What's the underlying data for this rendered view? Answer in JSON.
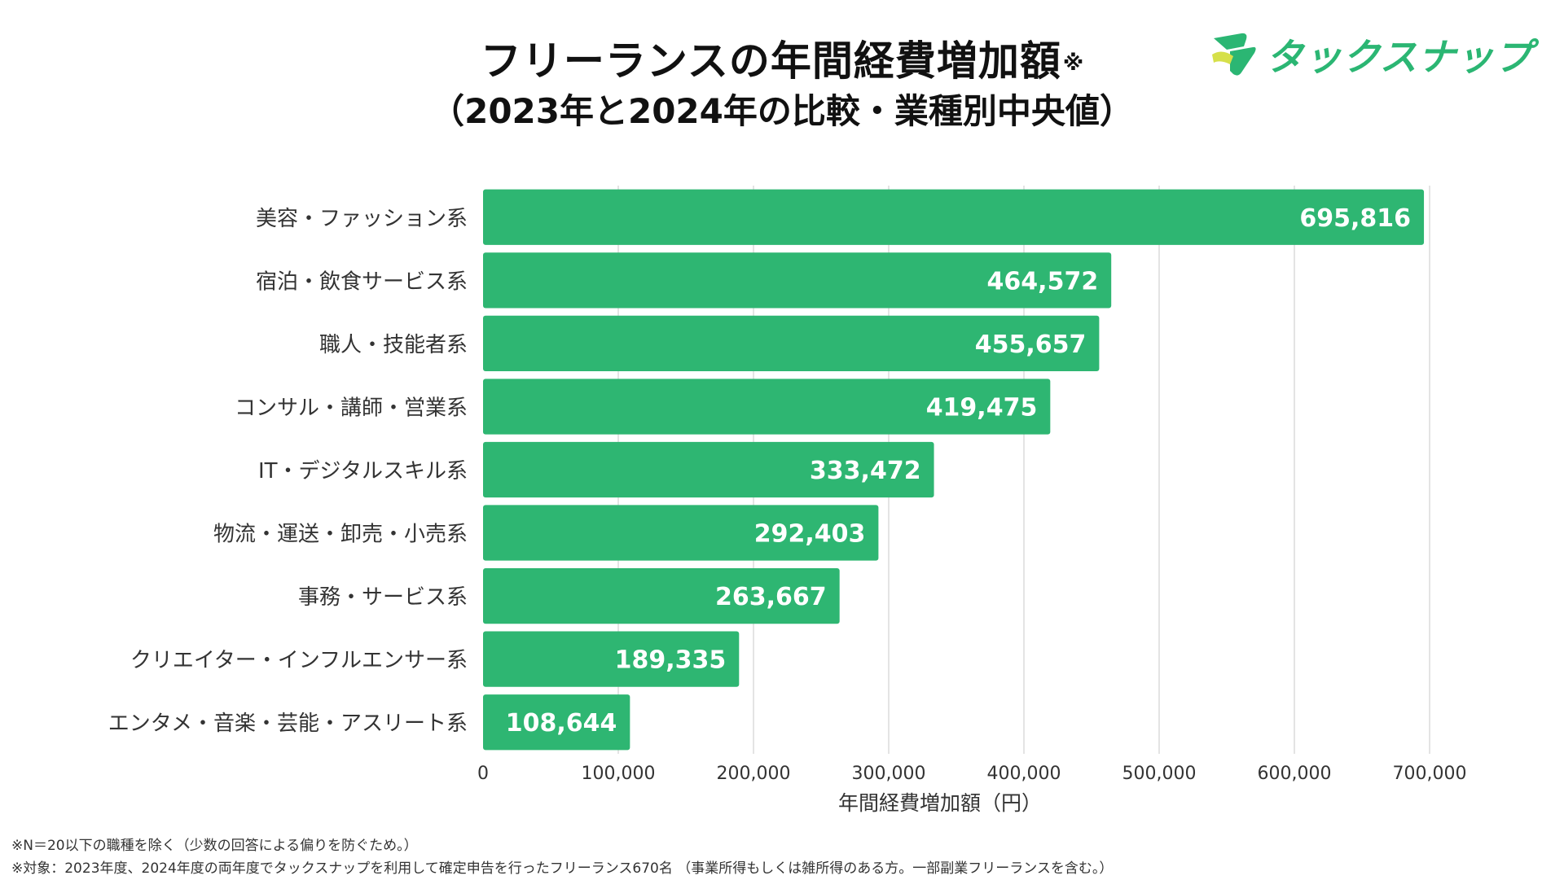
{
  "header": {
    "title": "フリーランスの年間経費増加額",
    "title_note_mark": "※",
    "subtitle": "（2023年と2024年の比較・業種別中央値）"
  },
  "logo": {
    "text": "タックスナップ",
    "icon": "taxnap-logo-icon"
  },
  "colors": {
    "bar": "#2eb672",
    "grid": "#dcdcdc",
    "logo_green": "#2bb673",
    "logo_yellow": "#d6e04a"
  },
  "chart_data": {
    "type": "bar",
    "orientation": "horizontal",
    "title": "フリーランスの年間経費増加額※",
    "subtitle": "（2023年と2024年の比較・業種別中央値）",
    "categories": [
      "美容・ファッション系",
      "宿泊・飲食サービス系",
      "職人・技能者系",
      "コンサル・講師・営業系",
      "IT・デジタルスキル系",
      "物流・運送・卸売・小売系",
      "事務・サービス系",
      "クリエイター・インフルエンサー系",
      "エンタメ・音楽・芸能・アスリート系"
    ],
    "values": [
      695816,
      464572,
      455657,
      419475,
      333472,
      292403,
      263667,
      189335,
      108644
    ],
    "value_labels": [
      "695,816",
      "464,572",
      "455,657",
      "419,475",
      "333,472",
      "292,403",
      "263,667",
      "189,335",
      "108,644"
    ],
    "xlim": [
      0,
      700000
    ],
    "xticks": [
      0,
      100000,
      200000,
      300000,
      400000,
      500000,
      600000,
      700000
    ],
    "xtick_labels": [
      "0",
      "100,000",
      "200,000",
      "300,000",
      "400,000",
      "500,000",
      "600,000",
      "700,000"
    ],
    "xlabel": "年間経費増加額（円）",
    "ylabel": "",
    "grid": true
  },
  "footnotes": [
    "※N＝20以下の職種を除く（少数の回答による偏りを防ぐため。）",
    "※対象：2023年度、2024年度の両年度でタックスナップを利用して確定申告を行ったフリーランス670名 （事業所得もしくは雑所得のある方。一部副業フリーランスを含む。）"
  ]
}
